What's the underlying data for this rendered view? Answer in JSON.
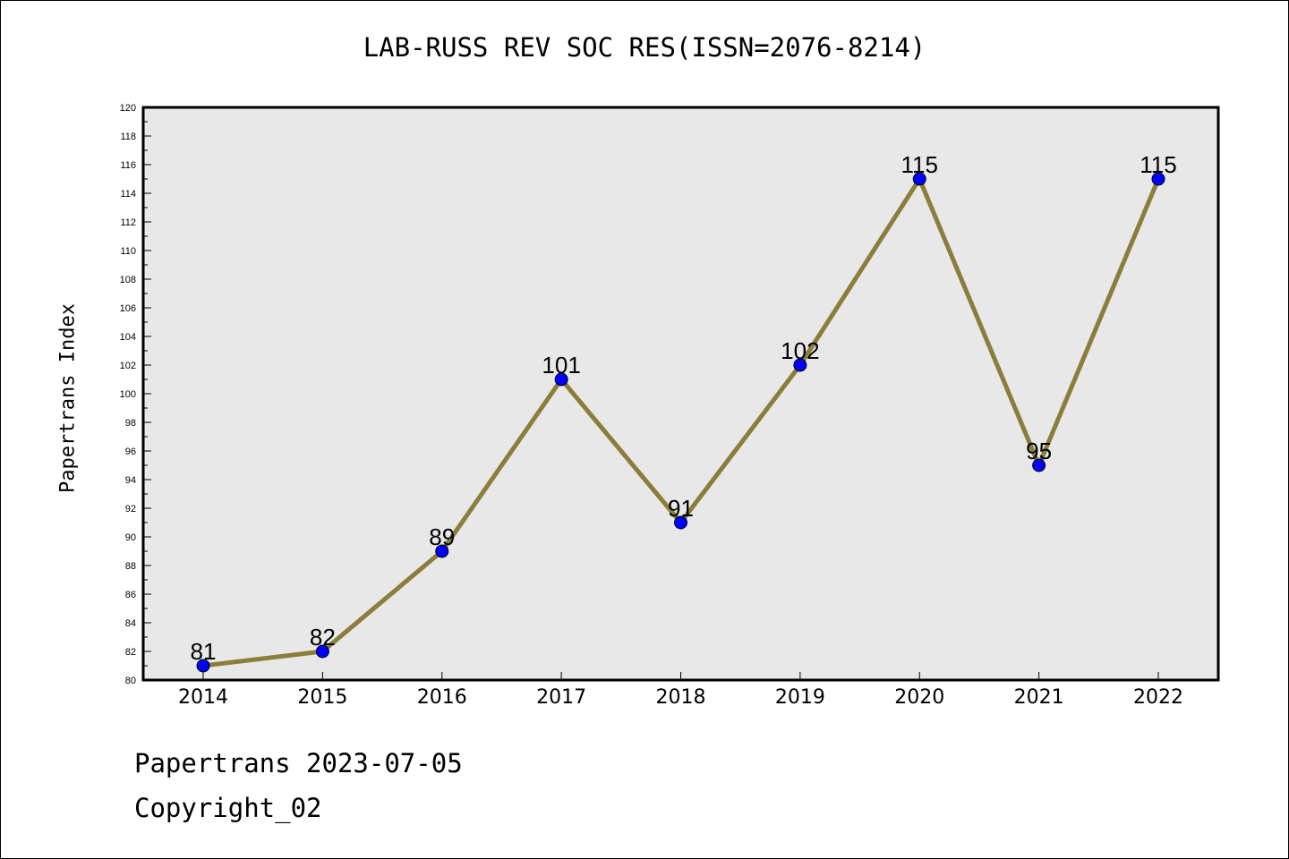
{
  "header": {
    "title": "LAB-RUSS REV SOC RES(ISSN=2076-8214)"
  },
  "footer": {
    "line1": "Papertrans 2023-07-05",
    "line2": "Copyright_02"
  },
  "colors": {
    "plot_background": "#e8e8e8",
    "line": "#8b7d3a",
    "marker": "#0000ff",
    "axis": "#000000"
  },
  "chart_data": {
    "type": "line",
    "title": "LAB-RUSS REV SOC RES(ISSN=2076-8214)",
    "xlabel": "",
    "ylabel": "Papertrans Index",
    "categories": [
      "2014",
      "2015",
      "2016",
      "2017",
      "2018",
      "2019",
      "2020",
      "2021",
      "2022"
    ],
    "series": [
      {
        "values": [
          81,
          82,
          89,
          101,
          91,
          102,
          115,
          95,
          115
        ]
      }
    ],
    "ylim": [
      80,
      120
    ],
    "ytick_step": 2,
    "grid": false,
    "legend": "none",
    "data_labels": true
  }
}
